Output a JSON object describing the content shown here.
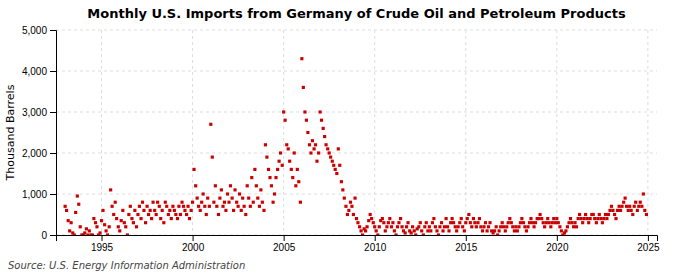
{
  "chart_data": {
    "type": "scatter",
    "title": "Monthly U.S. Imports from Germany of Crude Oil and Petroleum Products",
    "ylabel": "Thousand Barrels",
    "source": "Source: U.S. Energy Information Administration",
    "color": "#CC0000",
    "marker": "square",
    "grid": true,
    "xlim": [
      1992.5,
      2025.5
    ],
    "ylim": [
      0,
      5000
    ],
    "xticks": [
      1995,
      2000,
      2005,
      2010,
      2015,
      2020,
      2025
    ],
    "yticks": [
      0,
      {
        "value": 1000,
        "label": "1,000"
      },
      {
        "value": 2000,
        "label": "2,000"
      },
      {
        "value": 3000,
        "label": "3,000"
      },
      {
        "value": 4000,
        "label": "4,000"
      },
      {
        "value": 5000,
        "label": "5,000"
      }
    ],
    "x": [
      1993.0,
      1993.08,
      1993.17,
      1993.25,
      1993.33,
      1993.42,
      1993.5,
      1993.58,
      1993.67,
      1993.75,
      1993.83,
      1993.92,
      1994.0,
      1994.08,
      1994.17,
      1994.25,
      1994.33,
      1994.42,
      1994.5,
      1994.58,
      1994.67,
      1994.75,
      1994.83,
      1994.92,
      1995.0,
      1995.08,
      1995.17,
      1995.25,
      1995.33,
      1995.42,
      1995.5,
      1995.58,
      1995.67,
      1995.75,
      1995.83,
      1995.92,
      1996.0,
      1996.08,
      1996.17,
      1996.25,
      1996.33,
      1996.42,
      1996.5,
      1996.58,
      1996.67,
      1996.75,
      1996.83,
      1996.92,
      1997.0,
      1997.08,
      1997.17,
      1997.25,
      1997.33,
      1997.42,
      1997.5,
      1997.58,
      1997.67,
      1997.75,
      1997.83,
      1997.92,
      1998.0,
      1998.08,
      1998.17,
      1998.25,
      1998.33,
      1998.42,
      1998.5,
      1998.58,
      1998.67,
      1998.75,
      1998.83,
      1998.92,
      1999.0,
      1999.08,
      1999.17,
      1999.25,
      1999.33,
      1999.42,
      1999.5,
      1999.58,
      1999.67,
      1999.75,
      1999.83,
      1999.92,
      2000.0,
      2000.08,
      2000.17,
      2000.25,
      2000.33,
      2000.42,
      2000.5,
      2000.58,
      2000.67,
      2000.75,
      2000.83,
      2000.92,
      2001.0,
      2001.08,
      2001.17,
      2001.25,
      2001.33,
      2001.42,
      2001.5,
      2001.58,
      2001.67,
      2001.75,
      2001.83,
      2001.92,
      2002.0,
      2002.08,
      2002.17,
      2002.25,
      2002.33,
      2002.42,
      2002.5,
      2002.58,
      2002.67,
      2002.75,
      2002.83,
      2002.92,
      2003.0,
      2003.08,
      2003.17,
      2003.25,
      2003.33,
      2003.42,
      2003.5,
      2003.58,
      2003.67,
      2003.75,
      2003.83,
      2003.92,
      2004.0,
      2004.08,
      2004.17,
      2004.25,
      2004.33,
      2004.42,
      2004.5,
      2004.58,
      2004.67,
      2004.75,
      2004.83,
      2004.92,
      2005.0,
      2005.08,
      2005.17,
      2005.25,
      2005.33,
      2005.42,
      2005.5,
      2005.58,
      2005.67,
      2005.75,
      2005.83,
      2005.92,
      2006.0,
      2006.08,
      2006.17,
      2006.25,
      2006.33,
      2006.42,
      2006.5,
      2006.58,
      2006.67,
      2006.75,
      2006.83,
      2006.92,
      2007.0,
      2007.08,
      2007.17,
      2007.25,
      2007.33,
      2007.42,
      2007.5,
      2007.58,
      2007.67,
      2007.75,
      2007.83,
      2007.92,
      2008.0,
      2008.08,
      2008.17,
      2008.25,
      2008.33,
      2008.42,
      2008.5,
      2008.58,
      2008.67,
      2008.75,
      2008.83,
      2008.92,
      2009.0,
      2009.08,
      2009.17,
      2009.25,
      2009.33,
      2009.42,
      2009.5,
      2009.58,
      2009.67,
      2009.75,
      2009.83,
      2009.92,
      2010.0,
      2010.08,
      2010.17,
      2010.25,
      2010.33,
      2010.42,
      2010.5,
      2010.58,
      2010.67,
      2010.75,
      2010.83,
      2010.92,
      2011.0,
      2011.08,
      2011.17,
      2011.25,
      2011.33,
      2011.42,
      2011.5,
      2011.58,
      2011.67,
      2011.75,
      2011.83,
      2011.92,
      2012.0,
      2012.08,
      2012.17,
      2012.25,
      2012.33,
      2012.42,
      2012.5,
      2012.58,
      2012.67,
      2012.75,
      2012.83,
      2012.92,
      2013.0,
      2013.08,
      2013.17,
      2013.25,
      2013.33,
      2013.42,
      2013.5,
      2013.58,
      2013.67,
      2013.75,
      2013.83,
      2013.92,
      2014.0,
      2014.08,
      2014.17,
      2014.25,
      2014.33,
      2014.42,
      2014.5,
      2014.58,
      2014.67,
      2014.75,
      2014.83,
      2014.92,
      2015.0,
      2015.08,
      2015.17,
      2015.25,
      2015.33,
      2015.42,
      2015.5,
      2015.58,
      2015.67,
      2015.75,
      2015.83,
      2015.92,
      2016.0,
      2016.08,
      2016.17,
      2016.25,
      2016.33,
      2016.42,
      2016.5,
      2016.58,
      2016.67,
      2016.75,
      2016.83,
      2016.92,
      2017.0,
      2017.08,
      2017.17,
      2017.25,
      2017.33,
      2017.42,
      2017.5,
      2017.58,
      2017.67,
      2017.75,
      2017.83,
      2017.92,
      2018.0,
      2018.08,
      2018.17,
      2018.25,
      2018.33,
      2018.42,
      2018.5,
      2018.58,
      2018.67,
      2018.75,
      2018.83,
      2018.92,
      2019.0,
      2019.08,
      2019.17,
      2019.25,
      2019.33,
      2019.42,
      2019.5,
      2019.58,
      2019.67,
      2019.75,
      2019.83,
      2019.92,
      2020.0,
      2020.08,
      2020.17,
      2020.25,
      2020.33,
      2020.42,
      2020.5,
      2020.58,
      2020.67,
      2020.75,
      2020.83,
      2020.92,
      2021.0,
      2021.08,
      2021.17,
      2021.25,
      2021.33,
      2021.42,
      2021.5,
      2021.58,
      2021.67,
      2021.75,
      2021.83,
      2021.92,
      2022.0,
      2022.08,
      2022.17,
      2022.25,
      2022.33,
      2022.42,
      2022.5,
      2022.58,
      2022.67,
      2022.75,
      2022.83,
      2022.92,
      2023.0,
      2023.08,
      2023.17,
      2023.25,
      2023.33,
      2023.42,
      2023.5,
      2023.58,
      2023.67,
      2023.75,
      2023.83,
      2023.92,
      2024.0,
      2024.08,
      2024.17,
      2024.25,
      2024.33,
      2024.42,
      2024.5,
      2024.58,
      2024.67,
      2024.75,
      2024.83,
      2024.92
    ],
    "values": [
      700,
      600,
      350,
      100,
      300,
      50,
      0,
      550,
      950,
      750,
      200,
      0,
      0,
      50,
      150,
      0,
      100,
      0,
      0,
      400,
      300,
      200,
      0,
      50,
      350,
      600,
      250,
      100,
      0,
      200,
      1100,
      700,
      500,
      800,
      400,
      200,
      100,
      350,
      600,
      300,
      200,
      0,
      500,
      700,
      400,
      300,
      600,
      200,
      500,
      700,
      400,
      800,
      600,
      300,
      700,
      500,
      600,
      400,
      800,
      600,
      500,
      800,
      700,
      400,
      600,
      300,
      800,
      700,
      500,
      600,
      400,
      700,
      600,
      500,
      400,
      700,
      500,
      800,
      700,
      600,
      500,
      700,
      400,
      600,
      800,
      1600,
      1200,
      900,
      700,
      600,
      800,
      1000,
      700,
      500,
      900,
      700,
      2700,
      1900,
      800,
      1200,
      700,
      500,
      900,
      1100,
      700,
      800,
      600,
      1000,
      800,
      1200,
      900,
      600,
      1100,
      800,
      700,
      1000,
      600,
      900,
      700,
      500,
      1200,
      900,
      700,
      1400,
      800,
      1600,
      1200,
      900,
      700,
      1100,
      800,
      600,
      2200,
      1900,
      1600,
      1400,
      1200,
      800,
      1000,
      1400,
      1600,
      1800,
      2000,
      1700,
      3000,
      2800,
      2200,
      2100,
      1800,
      1600,
      1400,
      2000,
      1200,
      1600,
      1300,
      800,
      4300,
      3600,
      3000,
      2800,
      2500,
      2200,
      2000,
      2300,
      2100,
      2200,
      1800,
      2000,
      3000,
      2800,
      2600,
      2400,
      2200,
      2100,
      2000,
      1900,
      1800,
      1700,
      1600,
      1500,
      2100,
      1700,
      1300,
      1100,
      900,
      700,
      500,
      600,
      800,
      700,
      500,
      900,
      400,
      300,
      200,
      100,
      0,
      150,
      100,
      200,
      350,
      500,
      400,
      300,
      200,
      100,
      0,
      200,
      350,
      400,
      300,
      100,
      200,
      300,
      400,
      200,
      300,
      100,
      0,
      200,
      300,
      400,
      200,
      100,
      50,
      200,
      300,
      100,
      50,
      200,
      100,
      0,
      150,
      200,
      300,
      100,
      0,
      200,
      300,
      100,
      200,
      100,
      300,
      400,
      200,
      100,
      0,
      200,
      300,
      100,
      200,
      400,
      200,
      100,
      300,
      400,
      300,
      200,
      100,
      200,
      300,
      400,
      200,
      100,
      300,
      400,
      500,
      300,
      200,
      400,
      300,
      200,
      300,
      400,
      200,
      100,
      200,
      300,
      100,
      200,
      300,
      100,
      50,
      100,
      200,
      0,
      100,
      200,
      300,
      200,
      100,
      200,
      300,
      400,
      300,
      200,
      100,
      200,
      100,
      200,
      300,
      400,
      300,
      200,
      100,
      200,
      300,
      400,
      300,
      200,
      300,
      400,
      400,
      500,
      400,
      300,
      200,
      300,
      400,
      300,
      200,
      300,
      400,
      300,
      400,
      300,
      200,
      100,
      0,
      50,
      100,
      200,
      300,
      400,
      300,
      200,
      300,
      200,
      400,
      500,
      400,
      300,
      400,
      500,
      400,
      300,
      400,
      500,
      500,
      400,
      300,
      400,
      500,
      400,
      300,
      400,
      500,
      400,
      500,
      600,
      700,
      600,
      500,
      400,
      600,
      700,
      600,
      700,
      800,
      900,
      700,
      600,
      700,
      600,
      500,
      700,
      800,
      600,
      700,
      800,
      700,
      1000,
      600,
      500
    ]
  }
}
